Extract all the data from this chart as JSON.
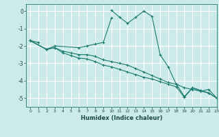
{
  "title": "",
  "xlabel": "Humidex (Indice chaleur)",
  "ylabel": "",
  "background_color": "#cceaea",
  "grid_color": "#ffffff",
  "line_color": "#1a7a6e",
  "xlim": [
    -0.5,
    23
  ],
  "ylim": [
    -5.5,
    0.4
  ],
  "yticks": [
    0,
    -1,
    -2,
    -3,
    -4,
    -5
  ],
  "xticks": [
    0,
    1,
    2,
    3,
    4,
    5,
    6,
    7,
    8,
    9,
    10,
    11,
    12,
    13,
    14,
    15,
    16,
    17,
    18,
    19,
    20,
    21,
    22,
    23
  ],
  "series": [
    {
      "x": [
        0,
        1
      ],
      "y": [
        -1.7,
        -1.8
      ]
    },
    {
      "x": [
        0,
        2,
        3,
        6,
        7,
        8,
        9,
        10
      ],
      "y": [
        -1.7,
        -2.2,
        -2.0,
        -2.1,
        -2.0,
        -1.9,
        -1.8,
        -0.4
      ]
    },
    {
      "x": [
        10,
        11,
        12,
        13,
        14,
        15,
        16,
        17,
        18,
        19,
        20,
        21,
        22,
        23
      ],
      "y": [
        0.05,
        -0.35,
        -0.7,
        -0.35,
        0.0,
        -0.3,
        -2.5,
        -3.2,
        -4.2,
        -4.9,
        -4.4,
        -4.6,
        -4.5,
        -5.0
      ]
    },
    {
      "x": [
        0,
        2,
        3,
        4,
        5,
        6,
        7,
        8,
        9,
        10,
        11,
        12,
        13,
        14,
        15,
        16,
        17,
        18,
        19,
        20,
        21,
        22,
        23
      ],
      "y": [
        -1.7,
        -2.2,
        -2.1,
        -2.3,
        -2.4,
        -2.5,
        -2.5,
        -2.6,
        -2.8,
        -2.9,
        -3.0,
        -3.1,
        -3.3,
        -3.5,
        -3.7,
        -3.9,
        -4.1,
        -4.2,
        -4.4,
        -4.5,
        -4.6,
        -4.7,
        -5.0
      ]
    },
    {
      "x": [
        0,
        2,
        3,
        4,
        5,
        6,
        7,
        8,
        9,
        10,
        11,
        12,
        13,
        14,
        15,
        16,
        17,
        18,
        19,
        20,
        21,
        22,
        23
      ],
      "y": [
        -1.7,
        -2.2,
        -2.1,
        -2.4,
        -2.55,
        -2.7,
        -2.75,
        -2.9,
        -3.1,
        -3.2,
        -3.35,
        -3.5,
        -3.65,
        -3.8,
        -3.9,
        -4.05,
        -4.2,
        -4.35,
        -4.95,
        -4.4,
        -4.55,
        -4.7,
        -5.0
      ]
    }
  ]
}
